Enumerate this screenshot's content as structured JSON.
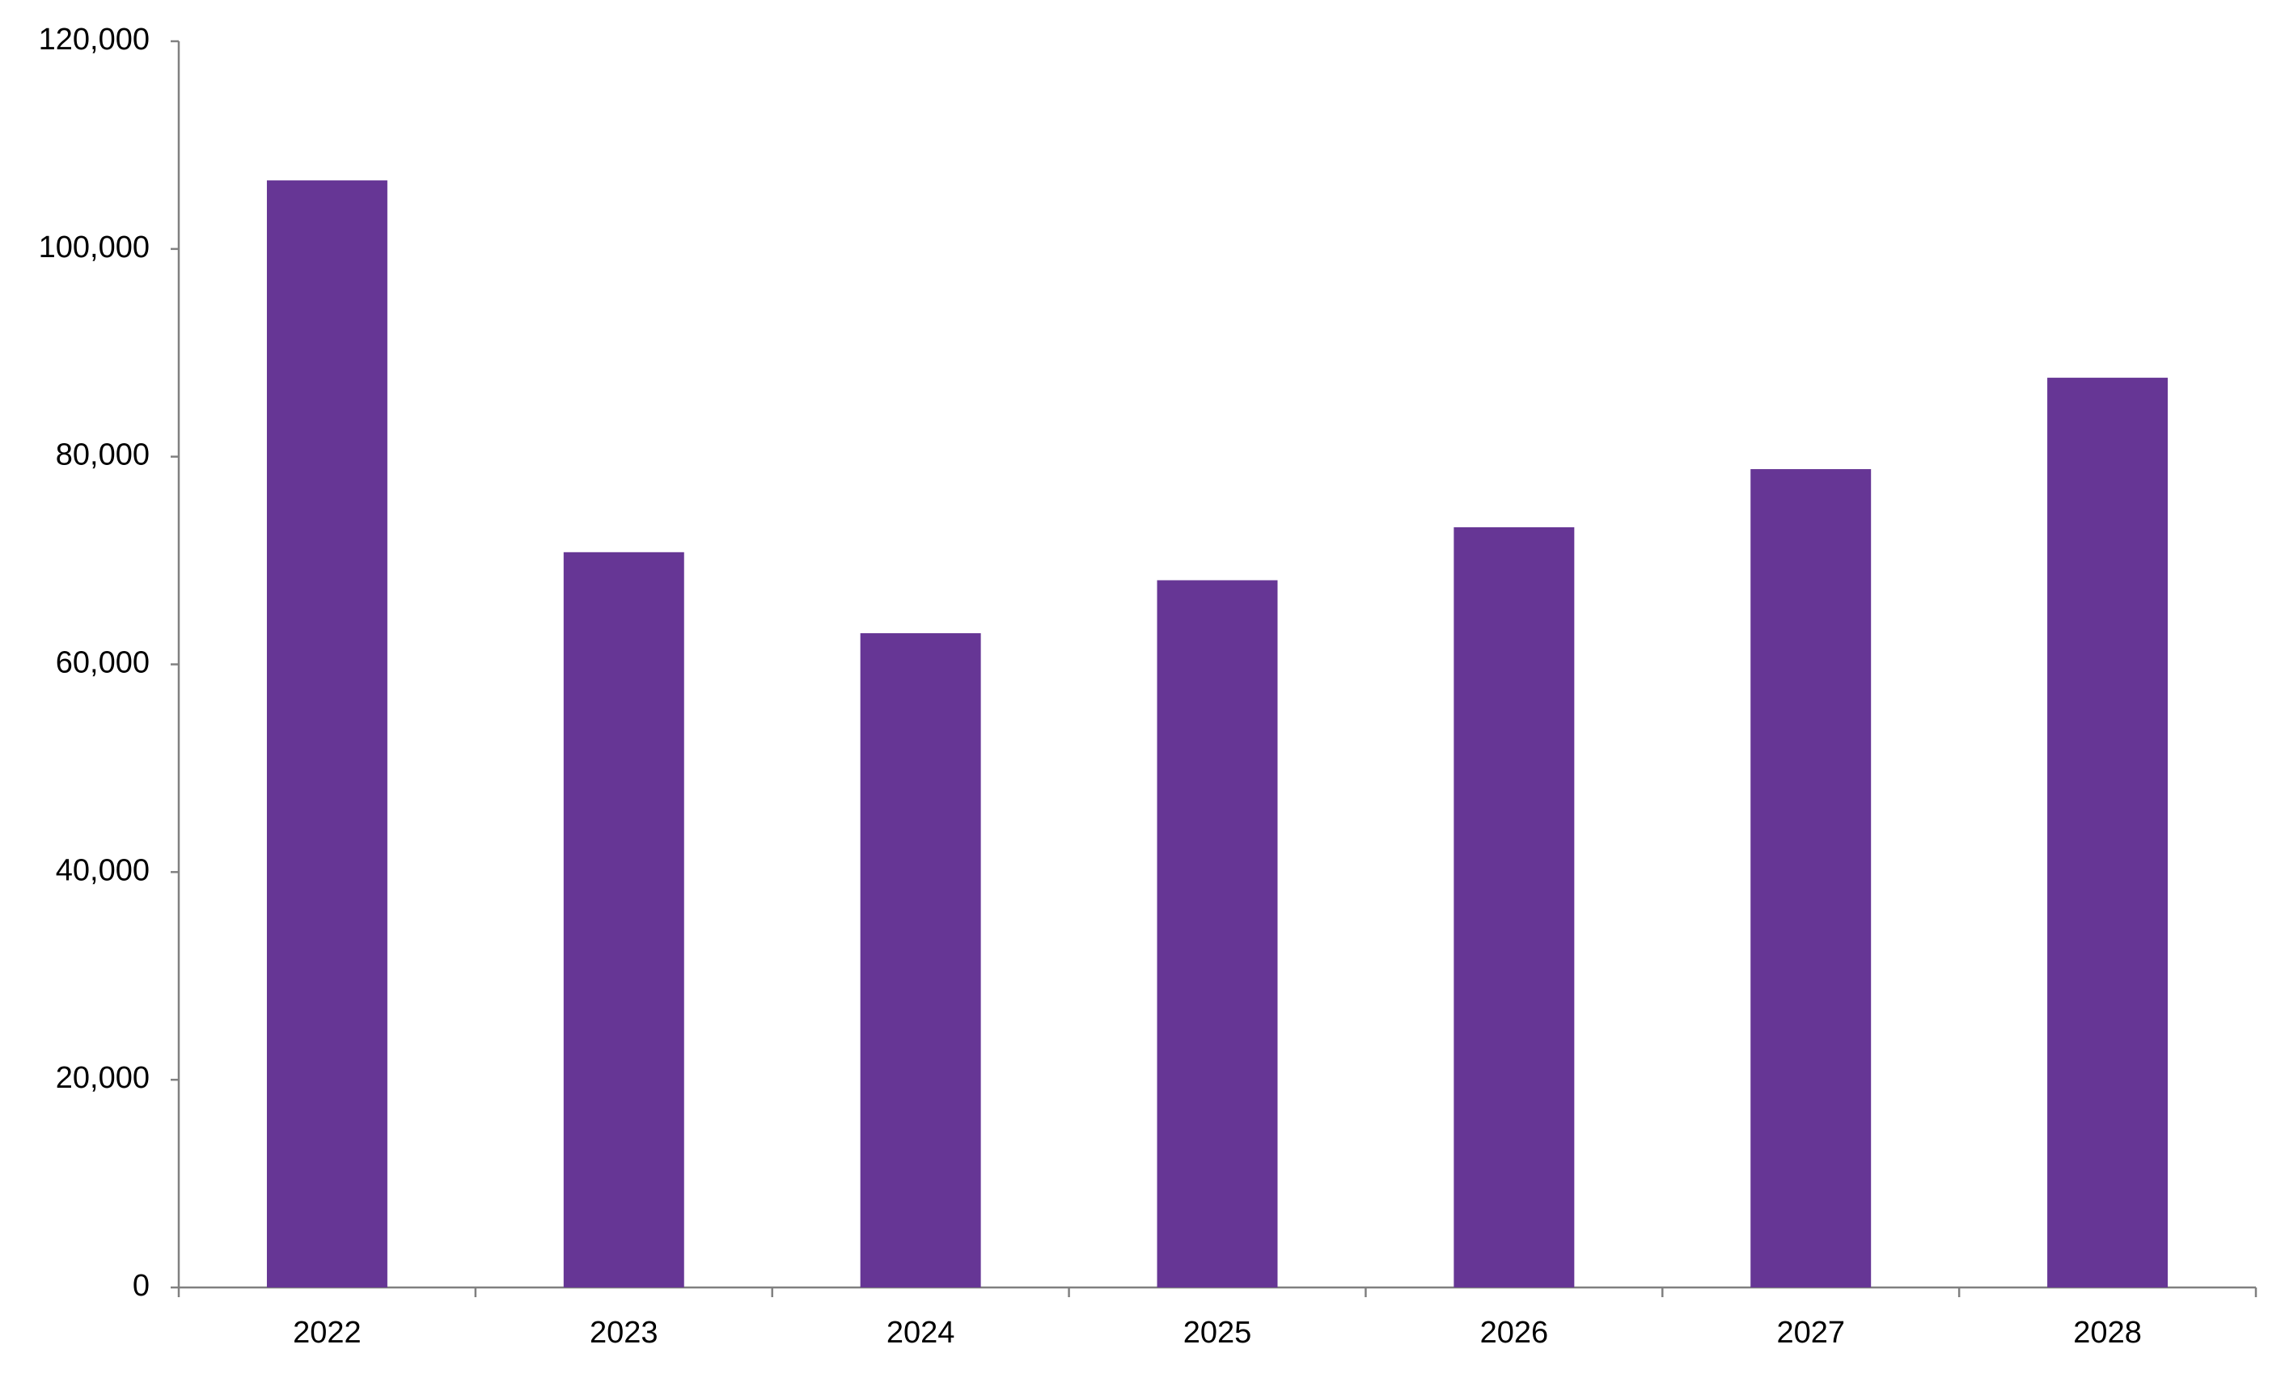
{
  "chart_data": {
    "type": "bar",
    "categories": [
      "2022",
      "2023",
      "2024",
      "2025",
      "2026",
      "2027",
      "2028"
    ],
    "values": [
      106600,
      70800,
      63000,
      68100,
      73200,
      78800,
      87600
    ],
    "color": "#663695",
    "ylim": [
      0,
      120000
    ],
    "yticks": [
      0,
      {
        "value": 20000,
        "label": "20,000"
      },
      {
        "value": 40000,
        "label": "40,000"
      },
      {
        "value": 60000,
        "label": "60,000"
      },
      {
        "value": 80000,
        "label": "80,000"
      },
      {
        "value": 100000,
        "label": "100,000"
      },
      {
        "value": 120000,
        "label": "120,000"
      }
    ],
    "grid": false
  }
}
